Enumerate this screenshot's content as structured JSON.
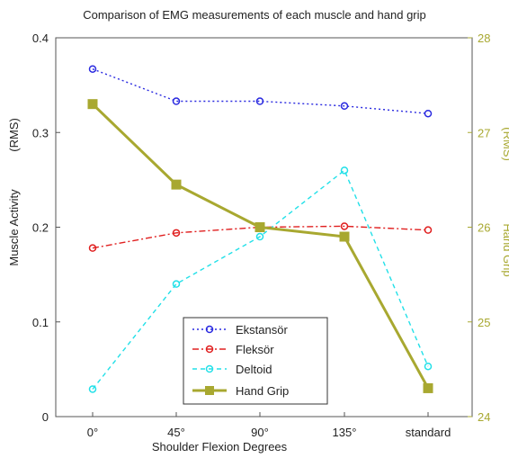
{
  "chart_data": {
    "type": "line",
    "title": "Comparison of EMG measurements of each muscle and hand grip",
    "xlabel": "Shoulder Flexion Degrees",
    "ylabel": "Muscle Activity",
    "ylabel_unit": "(RMS)",
    "y2label": "Hand Grip",
    "y2label_unit": "(RMS)",
    "categories": [
      "0°",
      "45°",
      "90°",
      "135°",
      "standard"
    ],
    "ylim": [
      0,
      0.4
    ],
    "y_ticks": [
      "0",
      "0.1",
      "0.2",
      "0.3",
      "0.4"
    ],
    "y2lim": [
      24,
      28
    ],
    "y2_ticks": [
      "24",
      "25",
      "26",
      "27",
      "28"
    ],
    "legend_position": "bottom-center",
    "grid": false,
    "series": [
      {
        "name": "Ekstansör",
        "axis": "left",
        "color": "#2a2ae0",
        "marker": "circle",
        "style": "dotted",
        "values": [
          0.367,
          0.333,
          0.333,
          0.328,
          0.32
        ]
      },
      {
        "name": "Fleksör",
        "axis": "left",
        "color": "#e02020",
        "marker": "circle",
        "style": "dashdot",
        "values": [
          0.178,
          0.194,
          0.2,
          0.201,
          0.197
        ]
      },
      {
        "name": "Deltoid",
        "axis": "left",
        "color": "#22e0e8",
        "marker": "circle",
        "style": "dashed",
        "values": [
          0.029,
          0.14,
          0.19,
          0.26,
          0.053
        ]
      },
      {
        "name": "Hand Grip",
        "axis": "right",
        "color": "#a8a830",
        "marker": "square",
        "style": "solid",
        "values": [
          27.3,
          26.45,
          26.0,
          25.9,
          24.3
        ]
      }
    ]
  }
}
